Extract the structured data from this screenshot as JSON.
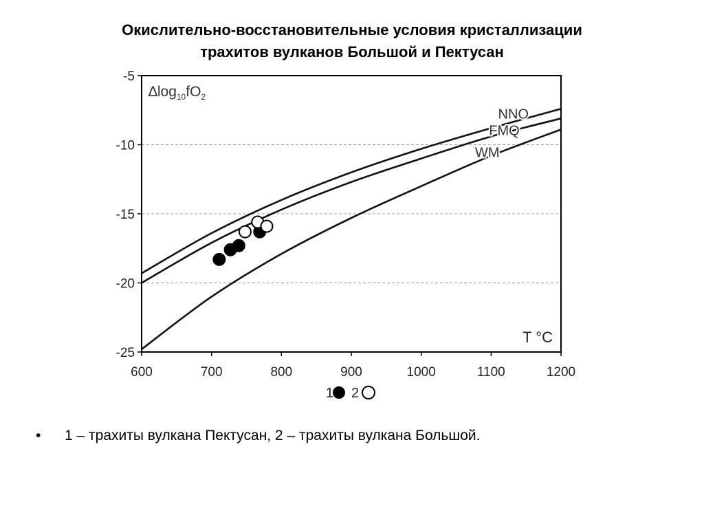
{
  "title": {
    "line1": "Окислительно-восстановительные условия кристаллизации",
    "line2": "трахитов вулканов Большой и Пектусан"
  },
  "caption": "1 – трахиты вулкана Пектусан, 2 – трахиты вулкана Большой.",
  "chart_data": {
    "type": "scatter",
    "ylabel": "∆log10fO2",
    "ylabel_parts": {
      "prefix": "∆log",
      "sub": "10",
      "mid": "fO",
      "sub2": "2"
    },
    "xlabel": "T °C",
    "xlim": [
      600,
      1200
    ],
    "ylim": [
      -25,
      -5
    ],
    "x_ticks": [
      600,
      700,
      800,
      900,
      1000,
      1100,
      1200
    ],
    "y_ticks": [
      -5,
      -10,
      -15,
      -20,
      -25
    ],
    "grid": "horizontal dashed",
    "curves": [
      {
        "name": "NNO",
        "x": [
          600,
          700,
          800,
          900,
          1000,
          1100,
          1200
        ],
        "y": [
          -19.3,
          -16.4,
          -14.0,
          -12.0,
          -10.3,
          -8.8,
          -7.4
        ]
      },
      {
        "name": "FMQ",
        "x": [
          600,
          700,
          800,
          900,
          1000,
          1100,
          1200
        ],
        "y": [
          -20.0,
          -17.1,
          -14.7,
          -12.7,
          -11.0,
          -9.4,
          -8.1
        ]
      },
      {
        "name": "WM",
        "x": [
          600,
          700,
          800,
          900,
          1000,
          1100,
          1200
        ],
        "y": [
          -24.8,
          -21.0,
          -17.9,
          -15.3,
          -13.0,
          -10.8,
          -8.9
        ]
      }
    ],
    "series": [
      {
        "name": "1",
        "marker": "filled",
        "x": [
          711,
          727,
          739,
          769
        ],
        "y": [
          -18.3,
          -17.6,
          -17.3,
          -16.3
        ]
      },
      {
        "name": "2",
        "marker": "open",
        "x": [
          748,
          766,
          779
        ],
        "y": [
          -16.3,
          -15.6,
          -15.9
        ]
      }
    ],
    "legend": [
      {
        "label": "1",
        "marker": "filled"
      },
      {
        "label": "2",
        "marker": "open"
      }
    ],
    "legend_position": "bottom-center"
  }
}
